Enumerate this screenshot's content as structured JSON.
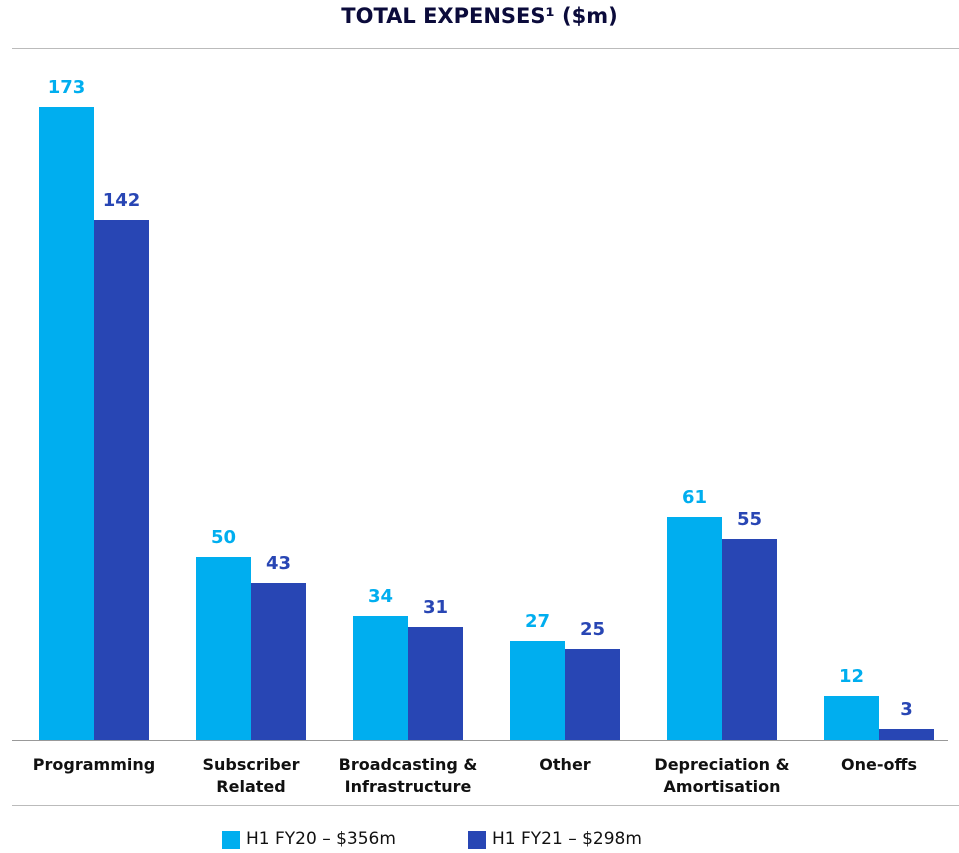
{
  "chart_data": {
    "type": "bar",
    "title": "TOTAL EXPENSES¹ ($m)",
    "categories": [
      "Programming",
      "Subscriber Related",
      "Broadcasting & Infrastructure",
      "Other",
      "Depreciation & Amortisation",
      "One-offs"
    ],
    "series": [
      {
        "name": "H1 FY20 – $356m",
        "color": "#00aeef",
        "values": [
          173,
          50,
          34,
          27,
          61,
          12
        ]
      },
      {
        "name": "H1 FY21 – $298m",
        "color": "#2846b4",
        "values": [
          142,
          43,
          31,
          25,
          55,
          3
        ]
      }
    ]
  }
}
